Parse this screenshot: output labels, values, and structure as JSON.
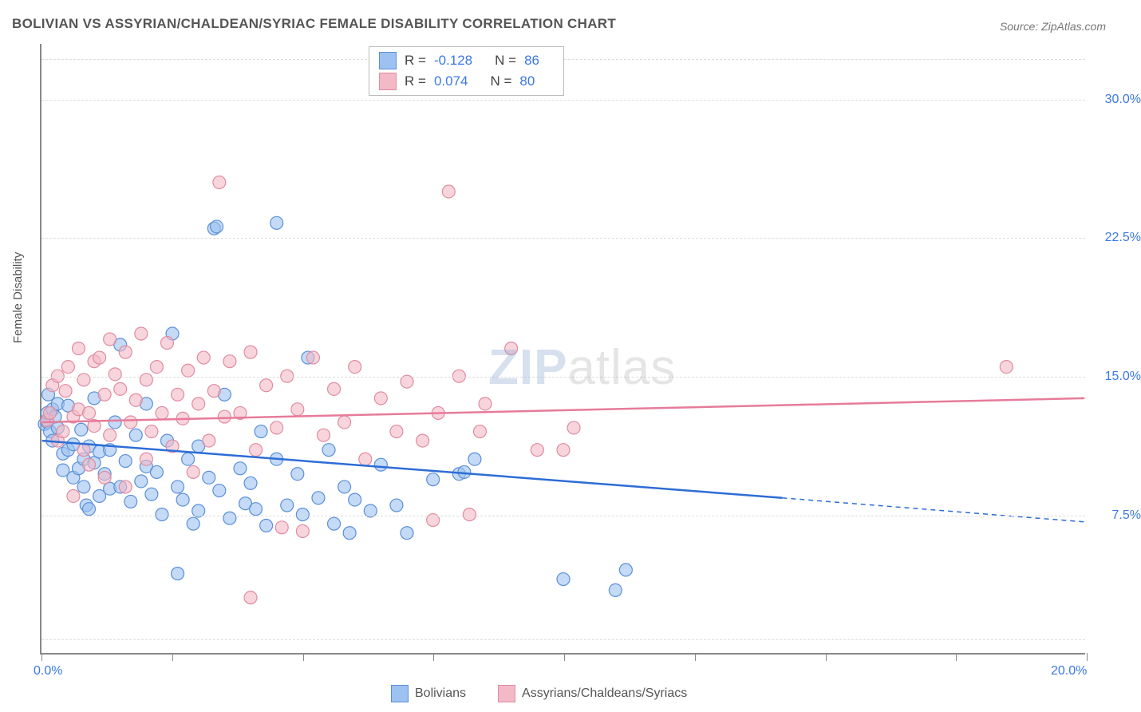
{
  "title": "BOLIVIAN VS ASSYRIAN/CHALDEAN/SYRIAC FEMALE DISABILITY CORRELATION CHART",
  "source_label": "Source:",
  "source_name": "ZipAtlas.com",
  "y_axis_label": "Female Disability",
  "watermark_zip": "ZIP",
  "watermark_atlas": "atlas",
  "chart": {
    "type": "scatter",
    "x_domain": [
      0,
      20
    ],
    "y_domain": [
      0,
      33
    ],
    "x_ticks": [
      0,
      2.5,
      5,
      7.5,
      10,
      12.5,
      15,
      17.5,
      20
    ],
    "x_tick_labels": {
      "0": "0.0%",
      "20": "20.0%"
    },
    "y_gridlines": [
      0.8,
      7.5,
      15,
      22.5,
      30,
      32.2
    ],
    "y_tick_labels": {
      "7.5": "7.5%",
      "15": "15.0%",
      "22.5": "22.5%",
      "30": "30.0%"
    },
    "background_color": "#ffffff",
    "grid_color": "#dddddd",
    "axis_color": "#888888",
    "series": [
      {
        "name": "Bolivians",
        "marker_fill": "#9dc1f0",
        "marker_stroke": "#5a8fd8",
        "marker_opacity": 0.6,
        "line_color": "#2d6dd6",
        "line_width": 2.5,
        "trend": {
          "x1": 0,
          "y1": 11.5,
          "x_solid_end": 14.2,
          "y_solid_end": 8.4,
          "x2": 20,
          "y2": 7.1,
          "dashed_after_solid": true
        },
        "stats": {
          "R": "-0.128",
          "N": "86"
        },
        "points": [
          [
            0.05,
            12.4
          ],
          [
            0.1,
            12.5
          ],
          [
            0.1,
            13.0
          ],
          [
            0.12,
            14.0
          ],
          [
            0.15,
            12.0
          ],
          [
            0.2,
            11.5
          ],
          [
            0.2,
            13.2
          ],
          [
            0.25,
            12.8
          ],
          [
            0.3,
            12.2
          ],
          [
            0.3,
            13.5
          ],
          [
            0.4,
            9.9
          ],
          [
            0.4,
            10.8
          ],
          [
            0.5,
            13.4
          ],
          [
            0.5,
            11.0
          ],
          [
            0.6,
            9.5
          ],
          [
            0.6,
            11.3
          ],
          [
            0.7,
            10.0
          ],
          [
            0.75,
            12.1
          ],
          [
            0.8,
            9.0
          ],
          [
            0.8,
            10.5
          ],
          [
            0.85,
            8.0
          ],
          [
            0.9,
            11.2
          ],
          [
            0.9,
            7.8
          ],
          [
            1.0,
            10.3
          ],
          [
            1.0,
            13.8
          ],
          [
            1.1,
            8.5
          ],
          [
            1.1,
            10.9
          ],
          [
            1.2,
            9.7
          ],
          [
            1.3,
            8.9
          ],
          [
            1.3,
            11.0
          ],
          [
            1.4,
            12.5
          ],
          [
            1.5,
            9.0
          ],
          [
            1.5,
            16.7
          ],
          [
            1.6,
            10.4
          ],
          [
            1.7,
            8.2
          ],
          [
            1.8,
            11.8
          ],
          [
            1.9,
            9.3
          ],
          [
            2.0,
            10.1
          ],
          [
            2.0,
            13.5
          ],
          [
            2.1,
            8.6
          ],
          [
            2.2,
            9.8
          ],
          [
            2.3,
            7.5
          ],
          [
            2.4,
            11.5
          ],
          [
            2.5,
            17.3
          ],
          [
            2.6,
            9.0
          ],
          [
            2.6,
            4.3
          ],
          [
            2.7,
            8.3
          ],
          [
            2.8,
            10.5
          ],
          [
            2.9,
            7.0
          ],
          [
            3.0,
            11.2
          ],
          [
            3.0,
            7.7
          ],
          [
            3.2,
            9.5
          ],
          [
            3.3,
            23.0
          ],
          [
            3.35,
            23.1
          ],
          [
            3.4,
            8.8
          ],
          [
            3.5,
            14.0
          ],
          [
            3.6,
            7.3
          ],
          [
            3.8,
            10.0
          ],
          [
            3.9,
            8.1
          ],
          [
            4.0,
            9.2
          ],
          [
            4.1,
            7.8
          ],
          [
            4.2,
            12.0
          ],
          [
            4.3,
            6.9
          ],
          [
            4.5,
            10.5
          ],
          [
            4.5,
            23.3
          ],
          [
            4.7,
            8.0
          ],
          [
            4.9,
            9.7
          ],
          [
            5.0,
            7.5
          ],
          [
            5.1,
            16.0
          ],
          [
            5.3,
            8.4
          ],
          [
            5.5,
            11.0
          ],
          [
            5.6,
            7.0
          ],
          [
            5.8,
            9.0
          ],
          [
            5.9,
            6.5
          ],
          [
            6.0,
            8.3
          ],
          [
            6.3,
            7.7
          ],
          [
            6.5,
            10.2
          ],
          [
            6.8,
            8.0
          ],
          [
            7.0,
            6.5
          ],
          [
            7.5,
            9.4
          ],
          [
            8.0,
            9.7
          ],
          [
            8.1,
            9.8
          ],
          [
            10.0,
            4.0
          ],
          [
            8.3,
            10.5
          ],
          [
            11.0,
            3.4
          ],
          [
            11.2,
            4.5
          ]
        ]
      },
      {
        "name": "Assyrians/Chaldeans/Syriacs",
        "marker_fill": "#f3b9c7",
        "marker_stroke": "#e08ba0",
        "marker_opacity": 0.6,
        "line_color": "#e67b9a",
        "line_width": 2.5,
        "trend": {
          "x1": 0,
          "y1": 12.5,
          "x_solid_end": 20,
          "y_solid_end": 13.8,
          "x2": 20,
          "y2": 13.8,
          "dashed_after_solid": false
        },
        "stats": {
          "R": "0.074",
          "N": "80"
        },
        "points": [
          [
            0.1,
            12.6
          ],
          [
            0.15,
            13.0
          ],
          [
            0.2,
            14.5
          ],
          [
            0.3,
            11.5
          ],
          [
            0.3,
            15.0
          ],
          [
            0.4,
            12.0
          ],
          [
            0.45,
            14.2
          ],
          [
            0.5,
            15.5
          ],
          [
            0.6,
            12.8
          ],
          [
            0.6,
            8.5
          ],
          [
            0.7,
            16.5
          ],
          [
            0.7,
            13.2
          ],
          [
            0.8,
            11.0
          ],
          [
            0.8,
            14.8
          ],
          [
            0.9,
            10.2
          ],
          [
            0.9,
            13.0
          ],
          [
            1.0,
            15.8
          ],
          [
            1.0,
            12.3
          ],
          [
            1.1,
            16.0
          ],
          [
            1.2,
            9.5
          ],
          [
            1.2,
            14.0
          ],
          [
            1.3,
            17.0
          ],
          [
            1.3,
            11.8
          ],
          [
            1.4,
            15.1
          ],
          [
            1.5,
            14.3
          ],
          [
            1.6,
            9.0
          ],
          [
            1.6,
            16.3
          ],
          [
            1.7,
            12.5
          ],
          [
            1.8,
            13.7
          ],
          [
            1.9,
            17.3
          ],
          [
            2.0,
            10.5
          ],
          [
            2.0,
            14.8
          ],
          [
            2.1,
            12.0
          ],
          [
            2.2,
            15.5
          ],
          [
            2.3,
            13.0
          ],
          [
            2.4,
            16.8
          ],
          [
            2.5,
            11.2
          ],
          [
            2.6,
            14.0
          ],
          [
            2.7,
            12.7
          ],
          [
            2.8,
            15.3
          ],
          [
            2.9,
            9.8
          ],
          [
            3.0,
            13.5
          ],
          [
            3.1,
            16.0
          ],
          [
            3.2,
            11.5
          ],
          [
            3.3,
            14.2
          ],
          [
            3.4,
            25.5
          ],
          [
            3.5,
            12.8
          ],
          [
            3.6,
            15.8
          ],
          [
            3.8,
            13.0
          ],
          [
            4.0,
            16.3
          ],
          [
            4.0,
            3.0
          ],
          [
            4.1,
            11.0
          ],
          [
            4.3,
            14.5
          ],
          [
            4.5,
            12.2
          ],
          [
            4.6,
            6.8
          ],
          [
            4.7,
            15.0
          ],
          [
            4.9,
            13.2
          ],
          [
            5.0,
            6.6
          ],
          [
            5.2,
            16.0
          ],
          [
            5.4,
            11.8
          ],
          [
            5.6,
            14.3
          ],
          [
            5.8,
            12.5
          ],
          [
            6.0,
            15.5
          ],
          [
            6.2,
            10.5
          ],
          [
            6.5,
            13.8
          ],
          [
            6.8,
            12.0
          ],
          [
            7.0,
            14.7
          ],
          [
            7.3,
            11.5
          ],
          [
            7.5,
            7.2
          ],
          [
            7.6,
            13.0
          ],
          [
            7.8,
            25.0
          ],
          [
            8.0,
            15.0
          ],
          [
            8.2,
            7.5
          ],
          [
            8.4,
            12.0
          ],
          [
            8.5,
            13.5
          ],
          [
            9.0,
            16.5
          ],
          [
            9.5,
            11.0
          ],
          [
            10.0,
            11.0
          ],
          [
            10.2,
            12.2
          ],
          [
            18.5,
            15.5
          ]
        ]
      }
    ]
  },
  "legend_labels": {
    "R_label": "R =",
    "N_label": "N ="
  }
}
